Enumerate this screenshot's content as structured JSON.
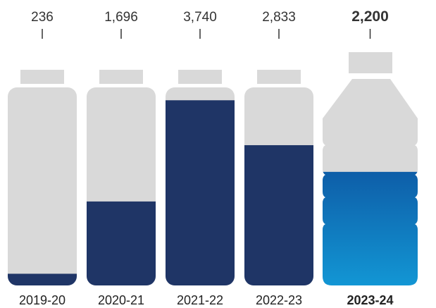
{
  "chart_data": {
    "type": "bar",
    "categories": [
      "2019-20",
      "2020-21",
      "2021-22",
      "2022-23",
      "2023-24"
    ],
    "values": [
      236,
      1696,
      3740,
      2833,
      2200
    ],
    "value_labels": [
      "236",
      "1,696",
      "3,740",
      "2,833",
      "2,200"
    ],
    "ylim": [
      0,
      4000
    ],
    "highlight_index": 4,
    "colors": {
      "bottle": "#d9d9d9",
      "fill": "#1f3566",
      "highlight_top": "#0e5ea8",
      "highlight_bottom": "#1296d4",
      "highlight_text": "#1a63a8"
    }
  }
}
